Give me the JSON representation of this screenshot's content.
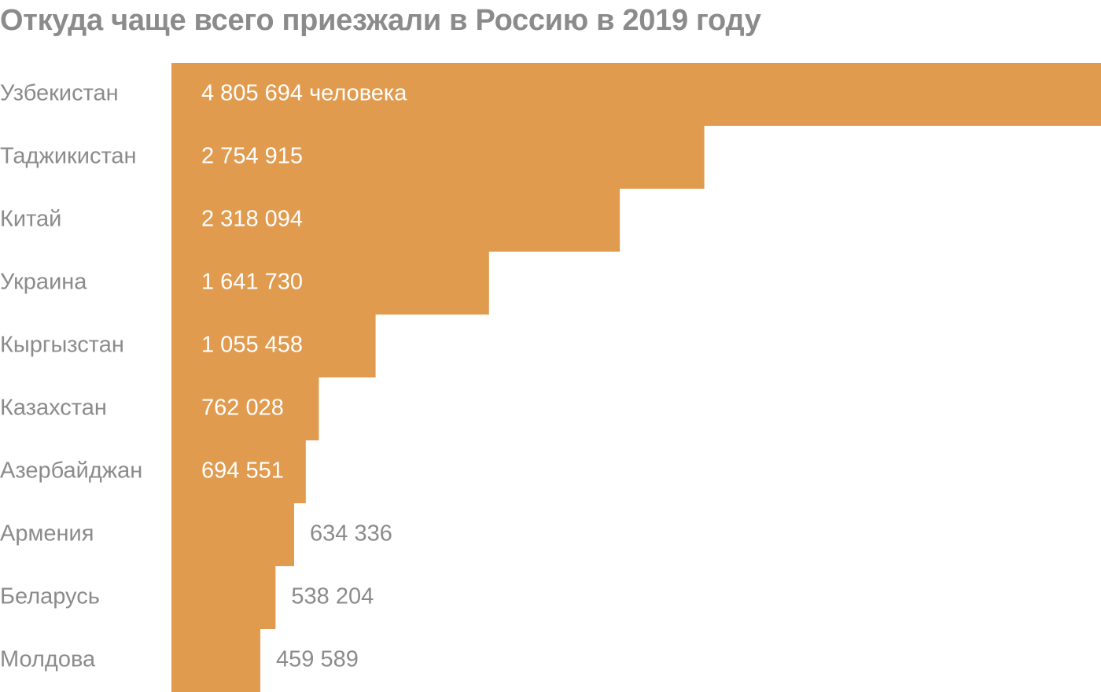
{
  "chart_data": {
    "type": "bar",
    "orientation": "horizontal",
    "title": "Откуда чаще всего приезжали в Россию в 2019 году",
    "categories": [
      "Узбекистан",
      "Таджикистан",
      "Китай",
      "Украина",
      "Кыргызстан",
      "Казахстан",
      "Азербайджан",
      "Армения",
      "Беларусь",
      "Молдова"
    ],
    "values": [
      4805694,
      2754915,
      2318094,
      1641730,
      1055458,
      762028,
      694551,
      634336,
      538204,
      459589
    ],
    "value_labels": [
      "4 805 694 человека",
      "2 754 915",
      "2 318 094",
      "1 641 730",
      "1 055 458",
      "762 028",
      "694 551",
      "634 336",
      "538 204",
      "459 589"
    ],
    "xlim": [
      0,
      4805694
    ],
    "grid": false,
    "legend": "none",
    "colors": {
      "bar": "#e19b4f",
      "label_inside": "#ffffff",
      "label_outside": "#8b8b8b",
      "text": "#8b8b8b"
    }
  }
}
